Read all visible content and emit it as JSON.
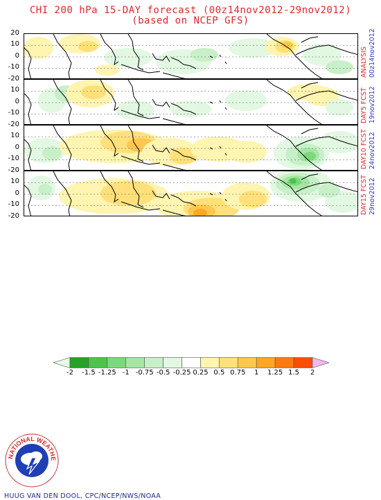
{
  "header": {
    "title_line1": "CHI 200 hPa 15-DAY forecast (00z14nov2012-29nov2012)",
    "title_line2": "(based on NCEP GFS)"
  },
  "panels": [
    {
      "label": "ANALYSIS",
      "date": "00z14nov2012",
      "y_ticks": [
        "20",
        "10",
        "0",
        "-10",
        "-20"
      ]
    },
    {
      "label": "DAY5 FCST",
      "date": "19nov2012",
      "y_ticks": [
        "20",
        "10",
        "0",
        "-10",
        "-20"
      ]
    },
    {
      "label": "DAY10 FCST",
      "date": "24nov2012",
      "y_ticks": [
        "20",
        "10",
        "0",
        "-10",
        "-20"
      ]
    },
    {
      "label": "DAY15 FCST",
      "date": "29nov2012",
      "y_ticks": [
        "20",
        "10",
        "0",
        "-10",
        "-20"
      ]
    }
  ],
  "colorbar": {
    "labels": [
      "-2",
      "-1.5",
      "-1.25",
      "-1",
      "-0.75",
      "-0.5",
      "-0.25",
      "0.25",
      "0.5",
      "0.75",
      "1",
      "1.25",
      "1.5",
      "2"
    ],
    "colors": [
      "#e6fae6",
      "#26a326",
      "#4cc44c",
      "#7cd87c",
      "#a4e6a4",
      "#c8f0c8",
      "#e2f8e2",
      "#ffffff",
      "#fff4b0",
      "#ffe07a",
      "#ffc84c",
      "#ffa623",
      "#ff7a12",
      "#ff4d00",
      "#f2b8ea"
    ]
  },
  "colors": {
    "title": "#e0282a",
    "date": "#2b38c8",
    "credit": "#1c2a8c"
  },
  "credit": "HUUG VAN DEN DOOL, CPC/NCEP/NWS/NOAA",
  "logo": {
    "text": "NATIONAL WEATHER SERVICE"
  }
}
